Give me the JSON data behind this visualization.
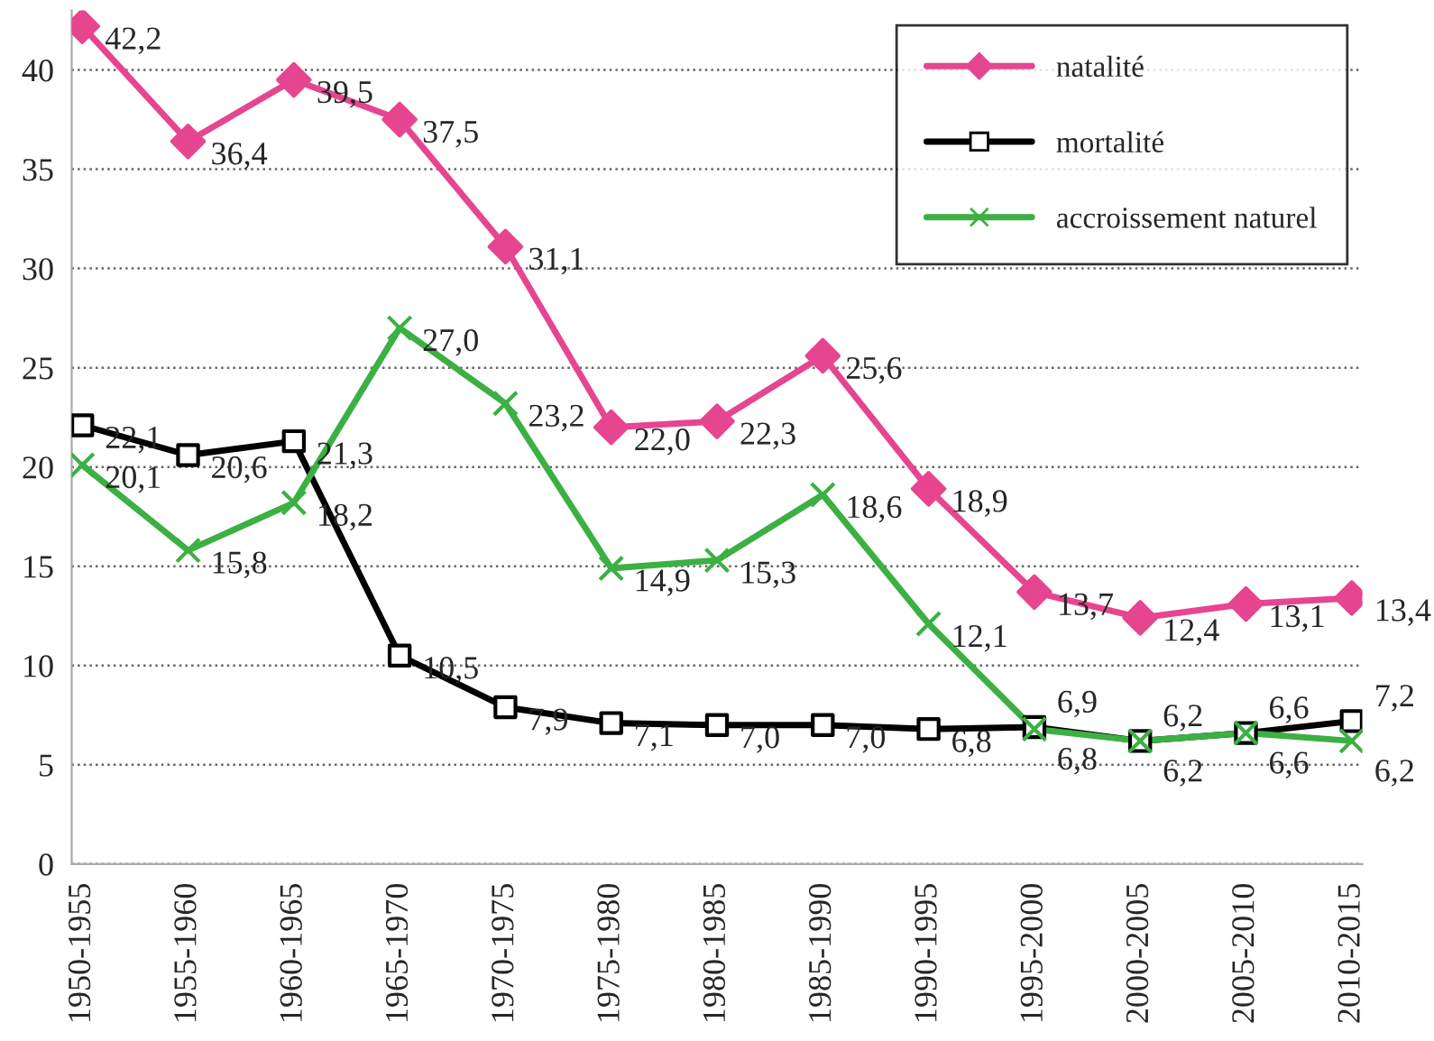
{
  "chart_data": {
    "type": "line",
    "categories": [
      "1950-1955",
      "1955-1960",
      "1960-1965",
      "1965-1970",
      "1970-1975",
      "1975-1980",
      "1980-1985",
      "1985-1990",
      "1990-1995",
      "1995-2000",
      "2000-2005",
      "2005-2010",
      "2010-2015"
    ],
    "series": [
      {
        "name": "natalité",
        "color": "#e6458f",
        "marker": "diamond",
        "values": [
          42.2,
          36.4,
          39.5,
          37.5,
          31.1,
          22.0,
          22.3,
          25.6,
          18.9,
          13.7,
          12.4,
          13.1,
          13.4
        ],
        "value_labels": [
          "42,2",
          "36,4",
          "39,5",
          "37,5",
          "31,1",
          "22,0",
          "22,3",
          "25,6",
          "18,9",
          "13,7",
          "12,4",
          "13,1",
          "13,4"
        ]
      },
      {
        "name": "mortalité",
        "color": "#000000",
        "marker": "square",
        "values": [
          22.1,
          20.6,
          21.3,
          10.5,
          7.9,
          7.1,
          7.0,
          7.0,
          6.8,
          6.9,
          6.2,
          6.6,
          7.2
        ],
        "value_labels": [
          "22,1",
          "20,6",
          "21,3",
          "10,5",
          "7,9",
          "7,1",
          "7,0",
          "7,0",
          "6,8",
          "6,9",
          "6,2",
          "6,6",
          "7,2"
        ]
      },
      {
        "name": "accroissement naturel",
        "color": "#3cb043",
        "marker": "cross",
        "values": [
          20.1,
          15.8,
          18.2,
          27.0,
          23.2,
          14.9,
          15.3,
          18.6,
          12.1,
          6.8,
          6.2,
          6.6,
          6.2
        ],
        "value_labels": [
          "20,1",
          "15,8",
          "18,2",
          "27,0",
          "23,2",
          "14,9",
          "15,3",
          "18,6",
          "12,1",
          "6,8",
          "6,2",
          "6,6",
          "6,2"
        ]
      }
    ],
    "ylim": [
      0,
      43
    ],
    "yticks": [
      0,
      5,
      10,
      15,
      20,
      25,
      30,
      35,
      40
    ],
    "grid": "y",
    "legend": "top right",
    "line_style": "solid"
  }
}
